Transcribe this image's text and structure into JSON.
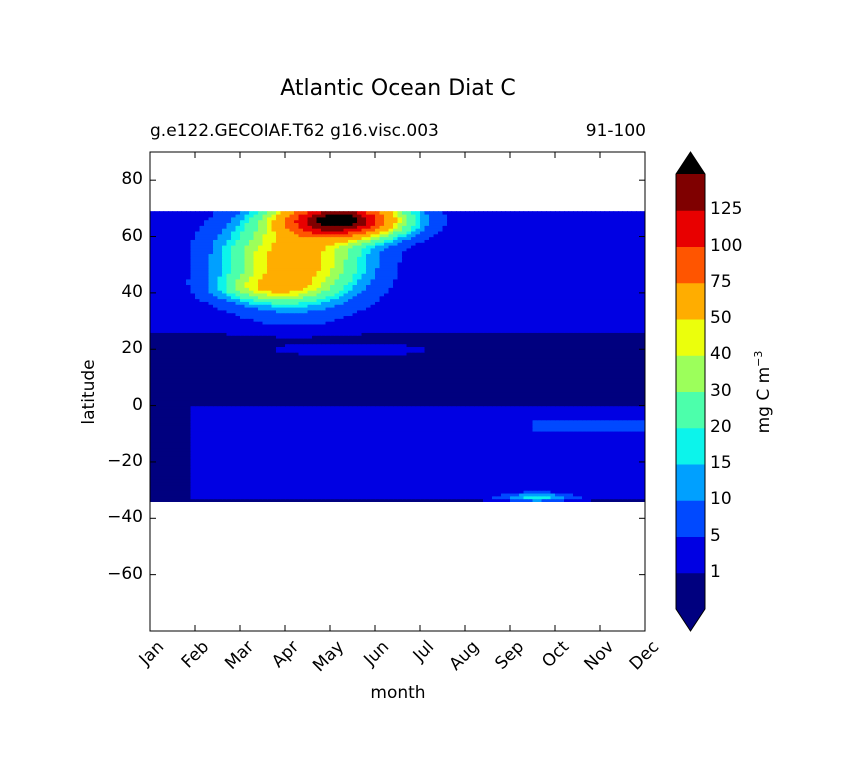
{
  "chart_data": {
    "type": "heatmap",
    "title": "Atlantic Ocean Diat C",
    "subtitle_left": "g.e122.GECOIAF.T62 g16.visc.003",
    "subtitle_right": "91-100",
    "xlabel": "month",
    "ylabel": "latitude",
    "xlim": [
      0,
      11
    ],
    "ylim": [
      -80,
      90
    ],
    "x_ticks": [
      "Jan",
      "Feb",
      "Mar",
      "Apr",
      "May",
      "Jun",
      "Jul",
      "Aug",
      "Sep",
      "Oct",
      "Nov",
      "Dec"
    ],
    "y_ticks": [
      80,
      60,
      40,
      20,
      0,
      -20,
      -40,
      -60
    ],
    "data_lat_range": [
      -34,
      69
    ],
    "colorbar": {
      "label": "mg C m",
      "label_exponent": "−3",
      "levels": [
        0,
        1,
        5,
        10,
        15,
        20,
        30,
        40,
        50,
        75,
        100,
        125,
        150
      ],
      "tick_labels": [
        "1",
        "5",
        "10",
        "15",
        "20",
        "30",
        "40",
        "50",
        "75",
        "100",
        "125"
      ],
      "colors": [
        "#00007f",
        "#0000e3",
        "#0049ff",
        "#00a0ff",
        "#0cf4eb",
        "#4cffab",
        "#9cff5b",
        "#ebff0c",
        "#ffad00",
        "#ff5500",
        "#e80000",
        "#7f0000"
      ],
      "extend": "both",
      "under_color": "#000080",
      "over_color": "#000000"
    },
    "approx_field": [
      {
        "region": "background",
        "lat": [
          -34,
          69
        ],
        "months": "Jan-Dec",
        "value": 0.5
      },
      {
        "region": "southern band",
        "lat": [
          -33,
          0
        ],
        "months": "Feb-Dec",
        "value": 3
      },
      {
        "region": "south Atlantic blob",
        "lat": [
          -34,
          -31
        ],
        "months": "Sep-Oct",
        "value": 15
      },
      {
        "region": "eastern band",
        "lat": [
          -10,
          -5
        ],
        "months": "Oct-Dec",
        "value": 3
      },
      {
        "region": "north band",
        "lat": [
          25,
          69
        ],
        "months": "Jan-Dec",
        "value": 3
      },
      {
        "region": "20N streak",
        "lat": [
          19,
          21
        ],
        "months": "Apr-Jun",
        "value": 3
      },
      {
        "region": "spring bloom",
        "lat": [
          37,
          69
        ],
        "months": "Mar-Jul",
        "value": 50
      },
      {
        "region": "bloom peak",
        "lat": [
          60,
          69
        ],
        "months": "May-Jun",
        "value": 150
      }
    ]
  }
}
